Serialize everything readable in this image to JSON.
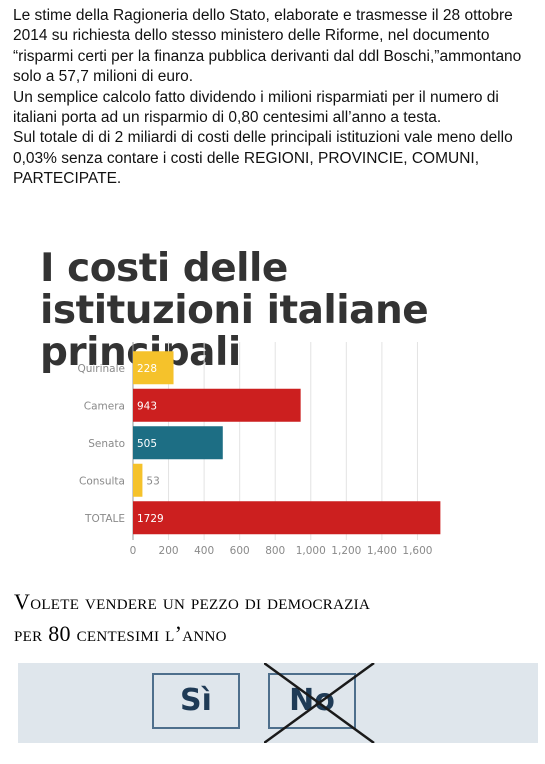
{
  "paragraph": {
    "line1": "Le stime della Ragioneria dello Stato, elaborate e trasmesse il 28 ottobre 2014 su richiesta dello stesso ministero delle Riforme, nel documento  “risparmi certi per la finanza pubblica derivanti dal ddl Boschi,”ammontano solo a 57,7 milioni di euro.",
    "line2": "Un semplice calcolo fatto dividendo i milioni risparmiati per il numero di italiani porta ad un risparmio di 0,80 centesimi all’anno a testa.",
    "line3": "Sul totale di  di 2 miliardi di costi delle principali istituzioni vale meno dello 0,03% senza contare i costi delle REGIONI, PROVINCIE, COMUNI, PARTECIPATE."
  },
  "chart_data": {
    "type": "bar",
    "orientation": "horizontal",
    "title": "I costi delle istituzioni italiane principali",
    "categories": [
      "Quirinale",
      "Camera",
      "Senato",
      "Consulta",
      "TOTALE"
    ],
    "values": [
      228,
      943,
      505,
      53,
      1729
    ],
    "value_labels": [
      "228",
      "943",
      "505",
      "53",
      "1729"
    ],
    "colors": [
      "#f5c22b",
      "#cc1f1f",
      "#1d6e84",
      "#f5c22b",
      "#cc1f1f"
    ],
    "xlim": [
      0,
      1800
    ],
    "xticks": [
      0,
      200,
      400,
      600,
      800,
      1000,
      1200,
      1400,
      1600
    ],
    "xtick_labels": [
      "0",
      "200",
      "400",
      "600",
      "800",
      "1,000",
      "1,200",
      "1,400",
      "1,600"
    ],
    "grid": true
  },
  "slogan": {
    "line1": "Volete vendere un pezzo di democrazia",
    "line2": "per 80 centesimi l’anno"
  },
  "ballot": {
    "si": "Sì",
    "no": "No"
  }
}
